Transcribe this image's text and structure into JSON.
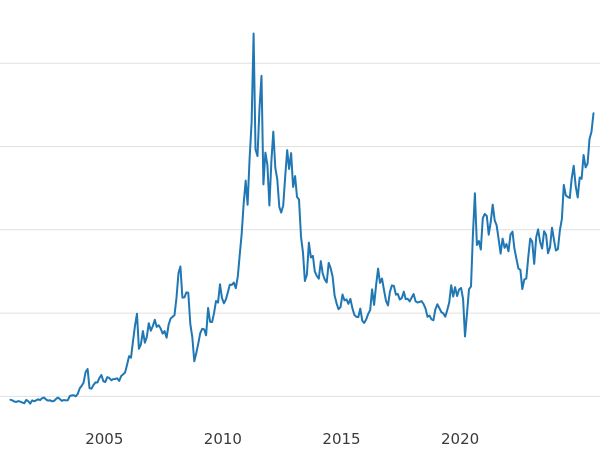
{
  "figure": {
    "background": "#ffffff"
  },
  "chart_data": {
    "type": "line",
    "title": "",
    "xlabel": "",
    "ylabel": "",
    "grid": "horizontal",
    "grid_color": "#e0e0e0",
    "tick_label_color": "#3a3a3a",
    "legend": "none",
    "xlim": [
      2000.6,
      2025.9
    ],
    "ylim": [
      0,
      52.6
    ],
    "gridline_values": [
      5,
      15,
      25,
      35,
      45
    ],
    "x_ticks": [
      2005,
      2010,
      2015,
      2020
    ],
    "x_tick_labels": [
      "2005",
      "2010",
      "2015",
      "2020"
    ],
    "series": [
      {
        "name": "",
        "color": "#1f77b4",
        "line_width": 2,
        "x_start": 2001.042,
        "x_step": 0.0833333,
        "values": [
          4.59,
          4.52,
          4.37,
          4.33,
          4.43,
          4.36,
          4.25,
          4.18,
          4.57,
          4.41,
          4.13,
          4.52,
          4.42,
          4.53,
          4.65,
          4.55,
          4.78,
          4.85,
          4.62,
          4.49,
          4.53,
          4.41,
          4.44,
          4.67,
          4.85,
          4.67,
          4.46,
          4.56,
          4.52,
          4.53,
          5.04,
          5.11,
          5.14,
          5.01,
          5.29,
          5.96,
          6.24,
          6.67,
          7.93,
          8.29,
          5.98,
          5.92,
          6.37,
          6.68,
          6.67,
          7.19,
          7.57,
          6.81,
          6.72,
          7.31,
          7.21,
          6.94,
          7.07,
          7.09,
          7.17,
          6.86,
          7.44,
          7.64,
          7.87,
          8.82,
          9.84,
          9.64,
          11.64,
          13.49,
          14.93,
          10.71,
          11.24,
          12.84,
          11.44,
          12.14,
          13.79,
          12.89,
          13.44,
          14.19,
          13.34,
          13.54,
          13.14,
          12.54,
          12.84,
          12.04,
          13.59,
          14.34,
          14.54,
          14.76,
          16.86,
          19.81,
          20.6,
          16.86,
          16.88,
          17.49,
          17.42,
          13.72,
          12.11,
          9.21,
          10.21,
          11.3,
          12.57,
          13.11,
          13.05,
          12.33,
          15.61,
          13.94,
          13.93,
          14.97,
          16.45,
          16.26,
          18.46,
          16.85,
          16.18,
          16.65,
          17.52,
          18.41,
          18.38,
          18.67,
          17.99,
          19.39,
          21.96,
          24.56,
          28.21,
          30.91,
          28.01,
          33.57,
          37.87,
          48.58,
          34.65,
          33.85,
          39.63,
          43.49,
          30.45,
          34.28,
          32.8,
          27.92,
          33.26,
          36.8,
          32.48,
          31.02,
          27.75,
          27.08,
          27.91,
          31.4,
          34.57,
          32.3,
          34.21,
          30.15,
          31.45,
          28.95,
          28.64,
          24.17,
          22.24,
          18.86,
          19.62,
          23.46,
          21.68,
          21.87,
          19.99,
          19.47,
          19.13,
          21.25,
          19.75,
          19.05,
          18.68,
          21.03,
          20.41,
          19.4,
          17.11,
          16.16,
          15.47,
          15.71,
          17.23,
          16.53,
          16.65,
          16.12,
          16.71,
          15.58,
          14.77,
          14.56,
          14.52,
          15.54,
          14.08,
          13.82,
          14.24,
          14.9,
          15.38,
          17.85,
          15.99,
          18.36,
          20.34,
          18.63,
          19.16,
          17.76,
          16.48,
          15.92,
          17.54,
          18.32,
          18.25,
          17.22,
          17.31,
          16.63,
          16.8,
          17.57,
          16.68,
          16.72,
          16.4,
          16.87,
          17.29,
          16.41,
          16.27,
          16.35,
          16.44,
          16.1,
          15.55,
          14.55,
          14.71,
          14.27,
          14.14,
          15.47,
          16.06,
          15.61,
          15.12,
          14.96,
          14.57,
          15.33,
          16.26,
          18.34,
          16.98,
          18.11,
          17.05,
          17.85,
          18.01,
          16.67,
          12.2,
          14.96,
          17.87,
          18.21,
          24.39,
          29.4,
          23.18,
          23.66,
          22.64,
          26.4,
          26.91,
          26.67,
          24.42,
          25.91,
          28.03,
          26.13,
          25.55,
          23.91,
          22.15,
          23.95,
          22.84,
          23.29,
          22.42,
          24.44,
          24.78,
          22.76,
          21.53,
          20.35,
          20.2,
          17.88,
          19.03,
          19.15,
          21.75,
          23.95,
          23.59,
          20.91,
          24.1,
          25.05,
          23.56,
          22.76,
          24.84,
          24.39,
          22.18,
          22.9,
          25.26,
          23.79,
          22.52,
          22.69,
          24.96,
          26.32,
          30.4,
          29.14,
          28.96,
          28.82,
          31.16,
          32.7,
          30.24,
          28.88,
          31.28,
          31.13,
          33.98,
          32.5,
          32.98,
          35.89,
          36.8,
          39.0
        ]
      }
    ]
  }
}
